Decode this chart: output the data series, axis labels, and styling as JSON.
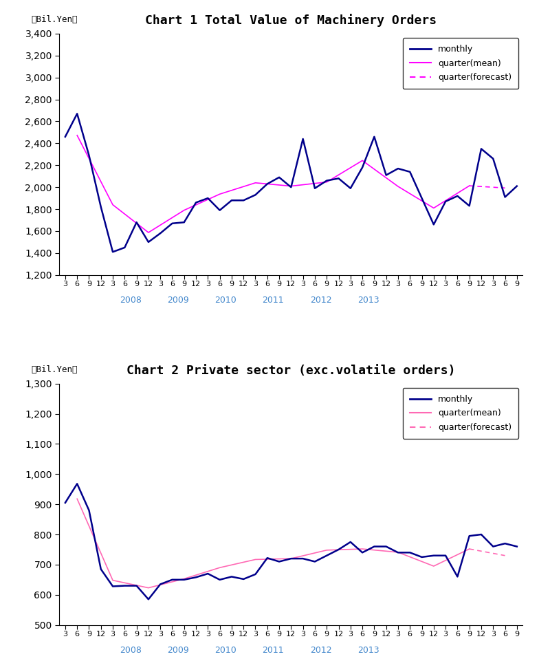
{
  "chart1_title": "Chart 1 Total Value of Machinery Orders",
  "chart2_title": "Chart 2 Private sector (exc.volatile orders)",
  "ylabel": "（Bil.Yen）",
  "chart1_ylim": [
    1200,
    3400
  ],
  "chart1_yticks": [
    1200,
    1400,
    1600,
    1800,
    2000,
    2200,
    2400,
    2600,
    2800,
    3000,
    3200,
    3400
  ],
  "chart2_ylim": [
    500,
    1300
  ],
  "chart2_yticks": [
    500,
    600,
    700,
    800,
    900,
    1000,
    1100,
    1200,
    1300
  ],
  "monthly_color": "#00008B",
  "quarter_mean_color1": "#FF00FF",
  "quarter_forecast_color1": "#FF00FF",
  "quarter_mean_color2": "#FF69B4",
  "quarter_forecast_color2": "#FF69B4",
  "monthly_lw": 1.8,
  "quarter_lw": 1.2,
  "chart1_monthly": [
    2460,
    2670,
    2290,
    1820,
    1410,
    1450,
    1680,
    1500,
    1580,
    1670,
    1680,
    1860,
    1900,
    1790,
    1880,
    1880,
    1930,
    2030,
    2090,
    2000,
    2440,
    1990,
    2060,
    2080,
    1990,
    2180,
    2460,
    2110,
    2170,
    2140,
    1900,
    1660,
    1870,
    1920,
    1830,
    2350,
    2260,
    1910,
    2010
  ],
  "chart1_quarter_mean_vals": [
    2473,
    1840,
    1587,
    1790,
    1937,
    2040,
    2010,
    2047,
    2243,
    2007,
    1810,
    2013
  ],
  "chart1_quarter_forecast_vals": [
    2013,
    1993
  ],
  "chart2_monthly": [
    905,
    968,
    880,
    685,
    628,
    630,
    630,
    585,
    635,
    650,
    650,
    658,
    670,
    650,
    660,
    652,
    668,
    722,
    710,
    720,
    720,
    710,
    730,
    750,
    775,
    740,
    760,
    760,
    740,
    740,
    725,
    730,
    730,
    660,
    795,
    800,
    760,
    770,
    760
  ],
  "chart2_quarter_mean_vals": [
    918,
    648,
    623,
    653,
    690,
    717,
    720,
    748,
    752,
    741,
    695,
    752
  ],
  "chart2_quarter_forecast_vals": [
    752,
    730
  ],
  "background_color": "#ffffff",
  "legend1_entries": [
    "monthly",
    "quarter(mean)",
    "quarter(forecast)"
  ],
  "legend2_entries": [
    "monthly",
    "quarter(mean)",
    "quarter(forecast)"
  ],
  "year_labels": [
    "2008",
    "2009",
    "2010",
    "2011",
    "2012",
    "2013"
  ],
  "title_fontsize": 13,
  "tick_fontsize": 8,
  "year_fontsize": 9
}
